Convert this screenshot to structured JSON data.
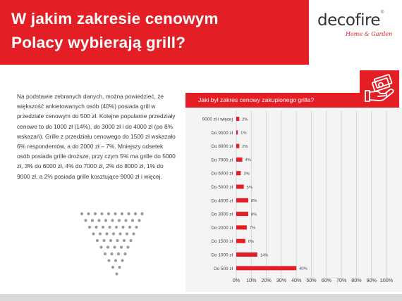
{
  "header": {
    "title_line1": "W jakim zakresie cenowym",
    "title_line2": "Polacy wybierają grill?",
    "background": "#e31e24"
  },
  "brand": {
    "name": "decofire",
    "registered": "®",
    "tagline": "Home & Garden"
  },
  "article": {
    "paragraph": "Na podstawie zebranych danych, można powiedzieć, że większość ankietowanych osób (40%) posiada grill w przedziale cenowym do 500 zł. Kolejne popularne przedziały cenowe to do 1000 zł (14%), do 3000 zł i do 4000 zł (po 8% wskazań). Grille z przedziału cenowego do 1500 zł wskazało 6% respondentów, a do 2000 zł – 7%. Mniejszy odsetek osób posiada grille droższe, przy czym 5% ma grille do 5000 zł, 3% do 6000 zł, 4% do 7000 zł, 2% do 8000 zł, 1% do 9000 zł, a 2% posiada grille kosztujące 9000 zł i więcej."
  },
  "icons": {
    "hand_money": "hand-holding-money-icon"
  },
  "colors": {
    "accent": "#e31e24",
    "bar": "#e31e24",
    "panel": "#f4f4f4",
    "grid": "#d2d2d2"
  },
  "chart_data": {
    "type": "bar",
    "orientation": "horizontal",
    "title": "Jaki był zakres cenowy zakupionego grilla?",
    "categories": [
      "9000 zł i więcej",
      "Do 9000 zł",
      "Do 8000 zł",
      "Do 7000 zł",
      "Do 6000 zł",
      "Do 5000 zł",
      "Do 4000 zł",
      "Do 3000 zł",
      "Do 2000 zł",
      "Do 1500 zł",
      "Do 1000 zł",
      "Do 500 zł"
    ],
    "values": [
      2,
      1,
      2,
      4,
      3,
      5,
      8,
      8,
      7,
      6,
      14,
      40
    ],
    "value_labels": [
      "2%",
      "1%",
      "2%",
      "4%",
      "3%",
      "5%",
      "8%",
      "8%",
      "7%",
      "6%",
      "14%",
      "40%"
    ],
    "xlim": [
      0,
      100
    ],
    "xticks": [
      0,
      10,
      20,
      30,
      40,
      50,
      60,
      70,
      80,
      90,
      100
    ],
    "xtick_labels": [
      "0%",
      "10%",
      "20%",
      "30%",
      "40%",
      "50%",
      "60%",
      "70%",
      "80%",
      "90%",
      "100%"
    ],
    "grid": true,
    "legend": false,
    "xlabel": "",
    "ylabel": ""
  }
}
